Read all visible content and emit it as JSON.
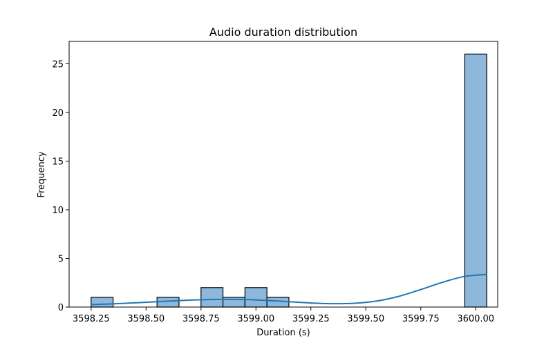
{
  "chart_data": {
    "type": "histogram",
    "title": "Audio duration distribution",
    "xlabel": "Duration (s)",
    "ylabel": "Frequency",
    "xlim": [
      3598.15,
      3600.1
    ],
    "ylim": [
      0,
      27.3
    ],
    "x_ticks": [
      3598.25,
      3598.5,
      3598.75,
      3599.0,
      3599.25,
      3599.5,
      3599.75,
      3600.0
    ],
    "x_tick_labels": [
      "3598.25",
      "3598.50",
      "3598.75",
      "3599.00",
      "3599.25",
      "3599.50",
      "3599.75",
      "3600.00"
    ],
    "y_ticks": [
      0,
      5,
      10,
      15,
      20,
      25
    ],
    "y_tick_labels": [
      "0",
      "5",
      "10",
      "15",
      "20",
      "25"
    ],
    "bins": [
      {
        "start": 3598.25,
        "end": 3598.35,
        "count": 1
      },
      {
        "start": 3598.35,
        "end": 3598.45,
        "count": 0
      },
      {
        "start": 3598.45,
        "end": 3598.55,
        "count": 0
      },
      {
        "start": 3598.55,
        "end": 3598.65,
        "count": 1
      },
      {
        "start": 3598.65,
        "end": 3598.75,
        "count": 0
      },
      {
        "start": 3598.75,
        "end": 3598.85,
        "count": 2
      },
      {
        "start": 3598.85,
        "end": 3598.95,
        "count": 1
      },
      {
        "start": 3598.95,
        "end": 3599.05,
        "count": 2
      },
      {
        "start": 3599.05,
        "end": 3599.15,
        "count": 1
      },
      {
        "start": 3599.15,
        "end": 3599.25,
        "count": 0
      },
      {
        "start": 3599.25,
        "end": 3599.35,
        "count": 0
      },
      {
        "start": 3599.35,
        "end": 3599.45,
        "count": 0
      },
      {
        "start": 3599.45,
        "end": 3599.55,
        "count": 0
      },
      {
        "start": 3599.55,
        "end": 3599.65,
        "count": 0
      },
      {
        "start": 3599.65,
        "end": 3599.75,
        "count": 0
      },
      {
        "start": 3599.75,
        "end": 3599.85,
        "count": 0
      },
      {
        "start": 3599.85,
        "end": 3599.95,
        "count": 0
      },
      {
        "start": 3599.95,
        "end": 3600.05,
        "count": 26
      }
    ],
    "kde": {
      "x": [
        3598.25,
        3598.35,
        3598.45,
        3598.55,
        3598.65,
        3598.75,
        3598.85,
        3598.95,
        3599.05,
        3599.15,
        3599.25,
        3599.35,
        3599.45,
        3599.55,
        3599.65,
        3599.75,
        3599.85,
        3599.95,
        3600.05
      ],
      "y": [
        0.25,
        0.33,
        0.43,
        0.55,
        0.66,
        0.75,
        0.79,
        0.77,
        0.68,
        0.55,
        0.42,
        0.35,
        0.39,
        0.62,
        1.1,
        1.8,
        2.55,
        3.15,
        3.35
      ]
    },
    "bar_color": "#8db8dc",
    "bar_edge_color": "#000000",
    "line_color": "#1f77b4",
    "grid": false,
    "legend": false
  }
}
